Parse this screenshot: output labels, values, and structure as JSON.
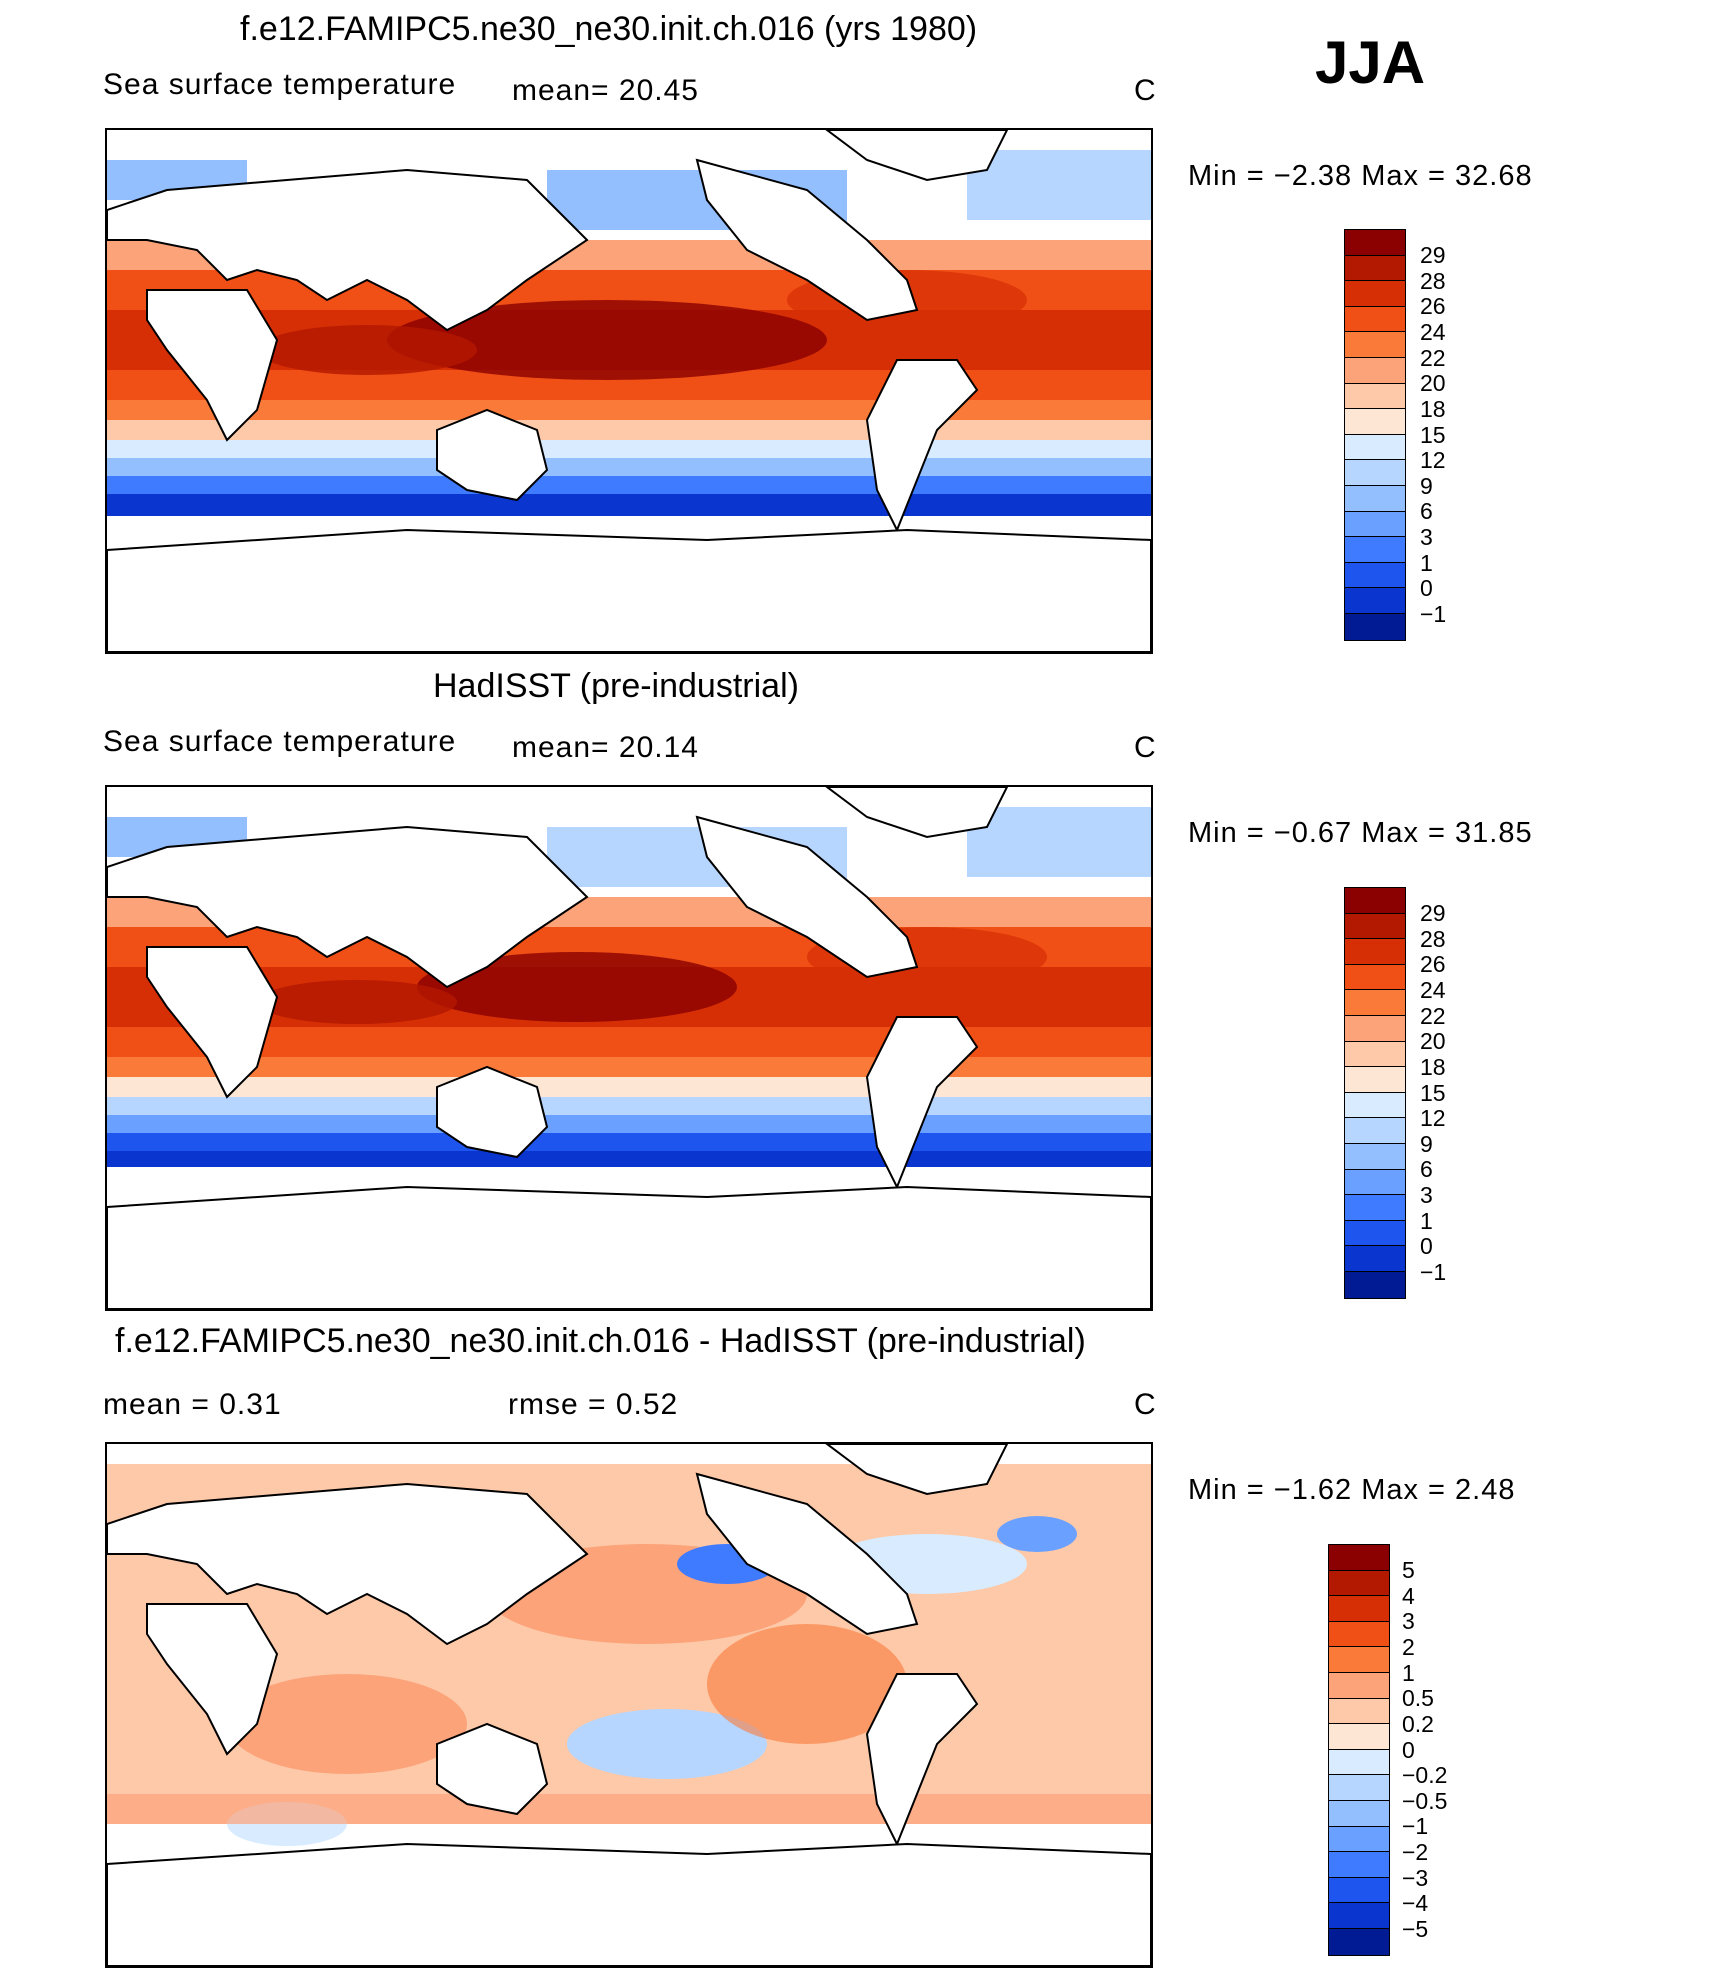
{
  "season": "JJA",
  "panels": [
    {
      "title": "f.e12.FAMIPC5.ne30_ne30.init.ch.016 (yrs 1980)",
      "left_label": "Sea surface temperature",
      "mean_text": "mean=   20.45",
      "units": "C",
      "minmax_text": "Min =   −2.38  Max =    32.68",
      "colorbar": {
        "labels": [
          "29",
          "28",
          "26",
          "24",
          "22",
          "20",
          "18",
          "15",
          "12",
          "9",
          "6",
          "3",
          "1",
          "0",
          "−1"
        ],
        "colors": [
          "#8b0000",
          "#b31800",
          "#d62f05",
          "#f04f15",
          "#fa7a3a",
          "#fca37a",
          "#fdc9a8",
          "#fde6d4",
          "#d9ecff",
          "#b6d6ff",
          "#93bfff",
          "#6aa0ff",
          "#3f7bff",
          "#1f55ef",
          "#0a35cf",
          "#001b94"
        ]
      }
    },
    {
      "title": "HadISST (pre-industrial)",
      "left_label": "Sea surface temperature",
      "mean_text": "mean=   20.14",
      "units": "C",
      "minmax_text": "Min =   −0.67  Max =    31.85",
      "colorbar": {
        "labels": [
          "29",
          "28",
          "26",
          "24",
          "22",
          "20",
          "18",
          "15",
          "12",
          "9",
          "6",
          "3",
          "1",
          "0",
          "−1"
        ],
        "colors": [
          "#8b0000",
          "#b31800",
          "#d62f05",
          "#f04f15",
          "#fa7a3a",
          "#fca37a",
          "#fdc9a8",
          "#fde6d4",
          "#d9ecff",
          "#b6d6ff",
          "#93bfff",
          "#6aa0ff",
          "#3f7bff",
          "#1f55ef",
          "#0a35cf",
          "#001b94"
        ]
      }
    },
    {
      "title": "f.e12.FAMIPC5.ne30_ne30.init.ch.016 - HadISST (pre-industrial)",
      "left_label": "mean =     0.31",
      "mean_text": "rmse =     0.52",
      "units": "C",
      "minmax_text": "Min =   −1.62  Max =     2.48",
      "colorbar": {
        "labels": [
          "5",
          "4",
          "3",
          "2",
          "1",
          "0.5",
          "0.2",
          "0",
          "−0.2",
          "−0.5",
          "−1",
          "−2",
          "−3",
          "−4",
          "−5"
        ],
        "colors": [
          "#8b0000",
          "#b31800",
          "#d62f05",
          "#f04f15",
          "#fa7a3a",
          "#fca37a",
          "#fdc9a8",
          "#fde6d4",
          "#d9ecff",
          "#b6d6ff",
          "#93bfff",
          "#6aa0ff",
          "#3f7bff",
          "#1f55ef",
          "#0a35cf",
          "#001b94"
        ]
      }
    }
  ]
}
